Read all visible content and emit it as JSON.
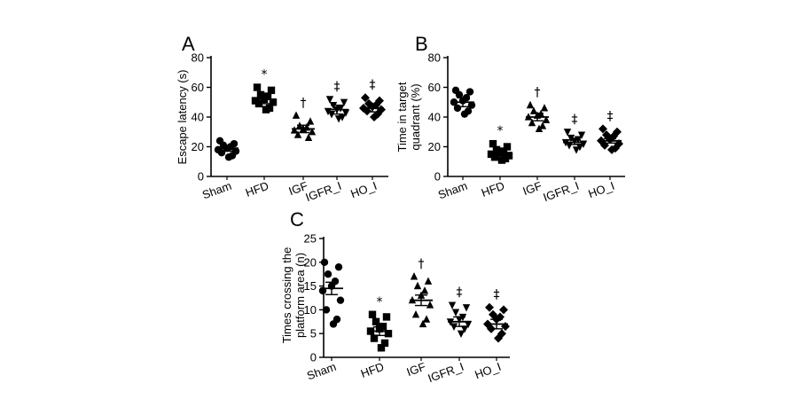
{
  "chart_data": [
    {
      "type": "scatter",
      "panel": "A",
      "ylabel": "Escape latency (s)",
      "ylim": [
        0,
        80
      ],
      "yticks": [
        0,
        20,
        40,
        60,
        80
      ],
      "categories": [
        "Sham",
        "HFD",
        "IGF",
        "IGFR_I",
        "HO_I"
      ],
      "markers": [
        "circle",
        "square",
        "triangle-up",
        "triangle-down",
        "diamond"
      ],
      "means": [
        19,
        52,
        32,
        45,
        46
      ],
      "sem": [
        2,
        3,
        2.5,
        3,
        2.5
      ],
      "significance": [
        "",
        "*",
        "†",
        "‡",
        "‡"
      ],
      "points": [
        [
          24,
          22,
          21,
          20,
          19,
          18,
          17,
          16,
          14,
          13
        ],
        [
          60,
          58,
          55,
          54,
          52,
          51,
          50,
          49,
          46,
          45
        ],
        [
          41,
          37,
          34,
          33,
          32,
          31,
          30,
          28,
          26
        ],
        [
          52,
          50,
          48,
          46,
          45,
          44,
          43,
          42,
          40,
          39
        ],
        [
          53,
          51,
          49,
          48,
          47,
          46,
          45,
          44,
          42,
          40
        ]
      ]
    },
    {
      "type": "scatter",
      "panel": "B",
      "ylabel": "Time in target quadrant (%)",
      "ylabel_lines": [
        "Time in target",
        "quadrant (%)"
      ],
      "ylim": [
        0,
        80
      ],
      "yticks": [
        0,
        20,
        40,
        60,
        80
      ],
      "categories": [
        "Sham",
        "HFD",
        "IGF",
        "IGFR_I",
        "HO_I"
      ],
      "markers": [
        "circle",
        "square",
        "triangle-up",
        "triangle-down",
        "diamond"
      ],
      "means": [
        50,
        16,
        40,
        23,
        24
      ],
      "sem": [
        3,
        1.5,
        2.5,
        1.5,
        1.5
      ],
      "significance": [
        "",
        "*",
        "†",
        "‡",
        "‡"
      ],
      "points": [
        [
          58,
          57,
          55,
          53,
          51,
          50,
          48,
          46,
          44,
          42
        ],
        [
          22,
          20,
          18,
          17,
          16,
          15,
          14,
          13,
          12,
          11
        ],
        [
          48,
          46,
          44,
          42,
          41,
          40,
          38,
          36,
          34,
          32
        ],
        [
          30,
          28,
          26,
          25,
          24,
          23,
          22,
          21,
          20,
          18
        ],
        [
          32,
          30,
          28,
          27,
          25,
          24,
          22,
          21,
          19,
          18
        ]
      ]
    },
    {
      "type": "scatter",
      "panel": "C",
      "ylabel": "Times crossing the platform area (n)",
      "ylabel_lines": [
        "Times crossing the",
        "platform area (n)"
      ],
      "ylim": [
        0,
        25
      ],
      "yticks": [
        0,
        5,
        10,
        15,
        20,
        25
      ],
      "categories": [
        "Sham",
        "HFD",
        "IGF",
        "IGFR_I",
        "HO_I"
      ],
      "markers": [
        "circle",
        "square",
        "triangle-up",
        "triangle-down",
        "diamond"
      ],
      "means": [
        14.5,
        5.5,
        12,
        7.5,
        7
      ],
      "sem": [
        1.3,
        0.9,
        1.1,
        1,
        1
      ],
      "significance": [
        "",
        "*",
        "†",
        "‡",
        "‡"
      ],
      "points": [
        [
          20,
          19,
          17.5,
          16,
          15,
          14,
          12,
          10,
          8,
          7
        ],
        [
          9,
          8.5,
          7.5,
          6.5,
          6,
          5.5,
          5,
          4,
          3,
          2
        ],
        [
          17,
          16,
          15,
          14,
          13,
          12,
          11,
          9,
          8,
          7
        ],
        [
          11,
          10.5,
          9.5,
          8.5,
          8,
          7.5,
          7,
          6.5,
          6,
          5
        ],
        [
          10.5,
          10,
          9,
          8.5,
          8,
          7,
          6.5,
          6,
          5,
          4
        ]
      ]
    }
  ]
}
